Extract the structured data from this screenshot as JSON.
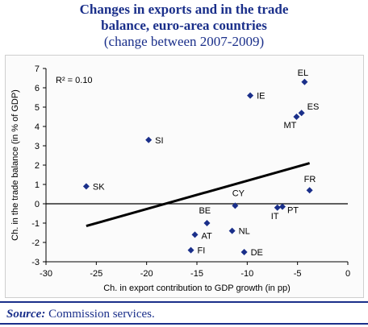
{
  "title_lines": [
    "Changes in exports and in the trade",
    "balance, euro-area countries"
  ],
  "subtitle": "(change between 2007-2009)",
  "source_label": "Source:",
  "source_text": "Commission services.",
  "colors": {
    "title": "#1a2f8a",
    "points": "#1a2f8a",
    "trend": "#000000"
  },
  "chart_data": {
    "type": "scatter",
    "xlabel": "Ch. in export contribution to GDP growth (in pp)",
    "ylabel": "Ch. in the trade balance (in % of GDP)",
    "xlim": [
      -30,
      0
    ],
    "ylim": [
      -3,
      7
    ],
    "xticks": [
      -30,
      -25,
      -20,
      -15,
      -10,
      -5,
      0
    ],
    "yticks": [
      -3,
      -2,
      -1,
      0,
      1,
      2,
      3,
      4,
      5,
      6,
      7
    ],
    "annotation": "R² = 0.10",
    "grid": false,
    "points": [
      {
        "label": "EL",
        "x": -4.3,
        "y": 6.3
      },
      {
        "label": "IE",
        "x": -9.7,
        "y": 5.6
      },
      {
        "label": "ES",
        "x": -4.6,
        "y": 4.7
      },
      {
        "label": "MT",
        "x": -5.1,
        "y": 4.5
      },
      {
        "label": "SI",
        "x": -19.8,
        "y": 3.3
      },
      {
        "label": "SK",
        "x": -26.0,
        "y": 0.9
      },
      {
        "label": "FR",
        "x": -3.8,
        "y": 0.7
      },
      {
        "label": "CY",
        "x": -11.2,
        "y": -0.1
      },
      {
        "label": "IT",
        "x": -7.0,
        "y": -0.2
      },
      {
        "label": "PT",
        "x": -6.5,
        "y": -0.15
      },
      {
        "label": "BE",
        "x": -14.0,
        "y": -1.0
      },
      {
        "label": "NL",
        "x": -11.5,
        "y": -1.4
      },
      {
        "label": "AT",
        "x": -15.2,
        "y": -1.6
      },
      {
        "label": "FI",
        "x": -15.6,
        "y": -2.4
      },
      {
        "label": "DE",
        "x": -10.3,
        "y": -2.5
      }
    ],
    "trendline": [
      {
        "x": -26,
        "y": -1.15
      },
      {
        "x": -3.8,
        "y": 2.1
      }
    ],
    "zero_line_y": 0
  }
}
